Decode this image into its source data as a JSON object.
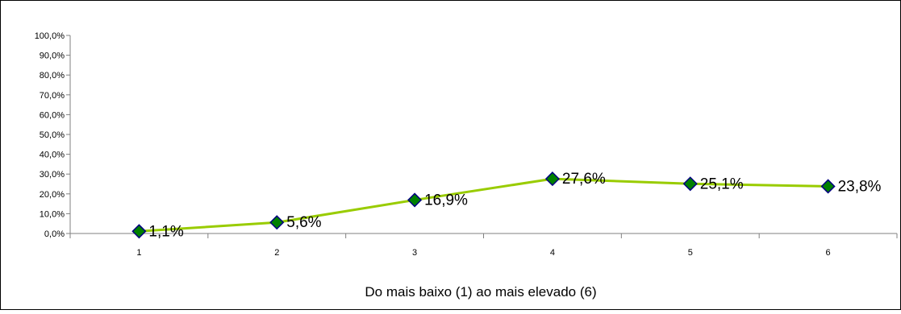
{
  "chart_data": {
    "type": "line",
    "title": "",
    "xlabel": "Do mais baixo (1) ao mais elevado (6)",
    "ylabel": "",
    "categories": [
      "1",
      "2",
      "3",
      "4",
      "5",
      "6"
    ],
    "series": [
      {
        "values": [
          1.1,
          5.6,
          16.9,
          27.6,
          25.1,
          23.8
        ],
        "labels": [
          "1,1%",
          "5,6%",
          "16,9%",
          "27,6%",
          "25,1%",
          "23,8%"
        ]
      }
    ],
    "ylim": [
      0,
      100
    ],
    "yticks": [
      0,
      10,
      20,
      30,
      40,
      50,
      60,
      70,
      80,
      90,
      100
    ],
    "ytick_labels": [
      "0,0%",
      "10,0%",
      "20,0%",
      "30,0%",
      "40,0%",
      "50,0%",
      "60,0%",
      "70,0%",
      "80,0%",
      "90,0%",
      "100,0%"
    ],
    "grid": false,
    "legend": "none",
    "colors": {
      "line": "#99cc00",
      "marker_fill": "#008000",
      "marker_edge": "#000080",
      "axis": "#808080",
      "frame": "#000000"
    }
  }
}
